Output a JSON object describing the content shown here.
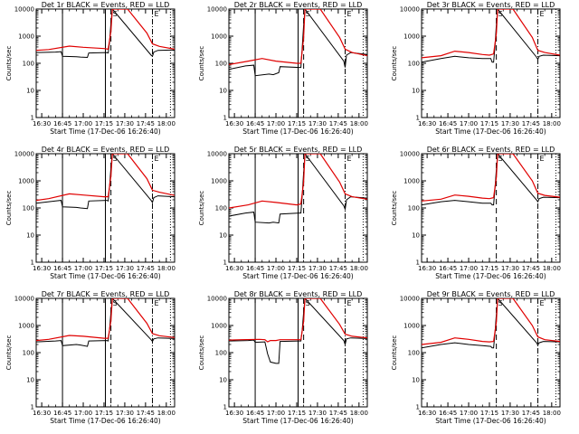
{
  "chart_data": {
    "type": "line",
    "xaxis_title": "Start Time (17-Dec-06 16:26:40)",
    "yaxis_title": "Counts/sec",
    "x_tick_labels": [
      "16:30",
      "16:45",
      "17:00",
      "17:15",
      "17:30",
      "17:45",
      "18:00"
    ],
    "x_range_minutes": [
      -4,
      96
    ],
    "y_scale": "log",
    "y_range": [
      1,
      10000
    ],
    "y_tick_labels": [
      "1",
      "10",
      "100",
      "1000",
      "10000"
    ],
    "panels": [
      {
        "title": "Det 1r BLACK = Events, RED = LLD",
        "markers": [
          "S",
          "E"
        ],
        "solid_lines": [
          15,
          46
        ],
        "dashed_line": 50,
        "dashdot_line": 80,
        "dotted_line": 93,
        "events": [
          [
            -4,
            250
          ],
          [
            10,
            260
          ],
          [
            14,
            270
          ],
          [
            15,
            180
          ],
          [
            25,
            175
          ],
          [
            28,
            170
          ],
          [
            33,
            165
          ],
          [
            34,
            240
          ],
          [
            47,
            250
          ],
          [
            48,
            240
          ],
          [
            49,
            600
          ],
          [
            50,
            3000
          ],
          [
            51,
            10000
          ],
          [
            79,
            200
          ],
          [
            80,
            180
          ],
          [
            81,
            260
          ],
          [
            84,
            300
          ],
          [
            96,
            310
          ]
        ],
        "lld": [
          [
            -4,
            300
          ],
          [
            5,
            320
          ],
          [
            20,
            430
          ],
          [
            30,
            390
          ],
          [
            45,
            350
          ],
          [
            48,
            330
          ],
          [
            50,
            1500
          ],
          [
            51,
            10000
          ],
          [
            62,
            10000
          ],
          [
            76,
            1300
          ],
          [
            80,
            520
          ],
          [
            85,
            420
          ],
          [
            96,
            330
          ]
        ]
      },
      {
        "title": "Det 2r BLACK = Events, RED = LLD",
        "markers": [
          "S",
          "E"
        ],
        "solid_lines": [
          15,
          46
        ],
        "dashed_line": 50,
        "dashdot_line": 80,
        "dotted_line": 93,
        "events": [
          [
            -4,
            60
          ],
          [
            8,
            80
          ],
          [
            14,
            85
          ],
          [
            15,
            35
          ],
          [
            25,
            40
          ],
          [
            28,
            38
          ],
          [
            32,
            45
          ],
          [
            33,
            75
          ],
          [
            47,
            70
          ],
          [
            48,
            70
          ],
          [
            49,
            400
          ],
          [
            50,
            2500
          ],
          [
            51,
            10000
          ],
          [
            79,
            120
          ],
          [
            80,
            70
          ],
          [
            81,
            200
          ],
          [
            84,
            250
          ],
          [
            96,
            210
          ]
        ],
        "lld": [
          [
            -4,
            90
          ],
          [
            10,
            120
          ],
          [
            20,
            150
          ],
          [
            30,
            120
          ],
          [
            45,
            100
          ],
          [
            48,
            100
          ],
          [
            50,
            900
          ],
          [
            51,
            10000
          ],
          [
            62,
            10000
          ],
          [
            76,
            900
          ],
          [
            80,
            330
          ],
          [
            85,
            250
          ],
          [
            96,
            190
          ]
        ]
      },
      {
        "title": "Det 3r BLACK = Events, RED = LLD",
        "markers": [
          "S",
          "E"
        ],
        "solid_lines": [],
        "dashed_line": 50,
        "dashdot_line": 80,
        "dotted_line": 93,
        "events": [
          [
            -4,
            110
          ],
          [
            10,
            150
          ],
          [
            20,
            180
          ],
          [
            30,
            160
          ],
          [
            40,
            150
          ],
          [
            46,
            150
          ],
          [
            47,
            110
          ],
          [
            48,
            110
          ],
          [
            49,
            400
          ],
          [
            50,
            2500
          ],
          [
            51,
            10000
          ],
          [
            79,
            170
          ],
          [
            80,
            140
          ],
          [
            81,
            180
          ],
          [
            84,
            200
          ],
          [
            96,
            190
          ]
        ],
        "lld": [
          [
            -4,
            160
          ],
          [
            10,
            190
          ],
          [
            20,
            280
          ],
          [
            30,
            250
          ],
          [
            40,
            210
          ],
          [
            45,
            200
          ],
          [
            48,
            220
          ],
          [
            50,
            1200
          ],
          [
            51,
            10000
          ],
          [
            62,
            10000
          ],
          [
            76,
            900
          ],
          [
            80,
            300
          ],
          [
            85,
            250
          ],
          [
            96,
            200
          ]
        ]
      },
      {
        "title": "Det 4r BLACK = Events, RED = LLD",
        "markers": [
          "S",
          "E"
        ],
        "solid_lines": [
          15,
          46
        ],
        "dashed_line": 50,
        "dashdot_line": 80,
        "dotted_line": 93,
        "events": [
          [
            -4,
            150
          ],
          [
            10,
            180
          ],
          [
            14,
            190
          ],
          [
            15,
            110
          ],
          [
            25,
            105
          ],
          [
            28,
            100
          ],
          [
            33,
            95
          ],
          [
            34,
            180
          ],
          [
            47,
            190
          ],
          [
            48,
            180
          ],
          [
            49,
            600
          ],
          [
            50,
            3000
          ],
          [
            51,
            10000
          ],
          [
            79,
            190
          ],
          [
            80,
            160
          ],
          [
            81,
            240
          ],
          [
            84,
            280
          ],
          [
            96,
            260
          ]
        ],
        "lld": [
          [
            -4,
            190
          ],
          [
            5,
            220
          ],
          [
            20,
            330
          ],
          [
            30,
            300
          ],
          [
            45,
            260
          ],
          [
            48,
            260
          ],
          [
            50,
            1500
          ],
          [
            51,
            10000
          ],
          [
            62,
            10000
          ],
          [
            76,
            1200
          ],
          [
            80,
            450
          ],
          [
            85,
            380
          ],
          [
            96,
            290
          ]
        ]
      },
      {
        "title": "Det 5r BLACK = Events, RED = LLD",
        "markers": [
          "S",
          "E"
        ],
        "solid_lines": [
          15,
          46
        ],
        "dashed_line": 50,
        "dashdot_line": 80,
        "dotted_line": 93,
        "events": [
          [
            -4,
            50
          ],
          [
            8,
            65
          ],
          [
            14,
            70
          ],
          [
            15,
            30
          ],
          [
            25,
            28
          ],
          [
            28,
            30
          ],
          [
            32,
            28
          ],
          [
            33,
            60
          ],
          [
            47,
            65
          ],
          [
            48,
            65
          ],
          [
            49,
            300
          ],
          [
            50,
            2000
          ],
          [
            51,
            10000
          ],
          [
            79,
            120
          ],
          [
            80,
            90
          ],
          [
            81,
            200
          ],
          [
            84,
            260
          ],
          [
            96,
            230
          ]
        ],
        "lld": [
          [
            -4,
            100
          ],
          [
            10,
            130
          ],
          [
            20,
            180
          ],
          [
            30,
            160
          ],
          [
            45,
            130
          ],
          [
            48,
            140
          ],
          [
            50,
            900
          ],
          [
            51,
            10000
          ],
          [
            62,
            10000
          ],
          [
            76,
            900
          ],
          [
            80,
            330
          ],
          [
            85,
            260
          ],
          [
            96,
            210
          ]
        ]
      },
      {
        "title": "Det 6r BLACK = Events, RED = LLD",
        "markers": [
          "S",
          "E"
        ],
        "solid_lines": [],
        "dashed_line": 50,
        "dashdot_line": 80,
        "dotted_line": 93,
        "events": [
          [
            -4,
            130
          ],
          [
            10,
            170
          ],
          [
            20,
            190
          ],
          [
            30,
            170
          ],
          [
            40,
            150
          ],
          [
            46,
            150
          ],
          [
            47,
            130
          ],
          [
            48,
            130
          ],
          [
            49,
            500
          ],
          [
            50,
            2500
          ],
          [
            51,
            10000
          ],
          [
            79,
            200
          ],
          [
            80,
            170
          ],
          [
            81,
            220
          ],
          [
            84,
            250
          ],
          [
            96,
            240
          ]
        ],
        "lld": [
          [
            -4,
            180
          ],
          [
            10,
            210
          ],
          [
            20,
            300
          ],
          [
            30,
            270
          ],
          [
            40,
            230
          ],
          [
            45,
            220
          ],
          [
            48,
            240
          ],
          [
            50,
            1300
          ],
          [
            51,
            10000
          ],
          [
            62,
            10000
          ],
          [
            76,
            1000
          ],
          [
            80,
            350
          ],
          [
            85,
            290
          ],
          [
            96,
            250
          ]
        ]
      },
      {
        "title": "Det 7r BLACK = Events, RED = LLD",
        "markers": [
          "S",
          "E"
        ],
        "solid_lines": [
          15,
          46
        ],
        "dashed_line": 50,
        "dashdot_line": 80,
        "dotted_line": 93,
        "events": [
          [
            -4,
            250
          ],
          [
            10,
            270
          ],
          [
            14,
            280
          ],
          [
            15,
            180
          ],
          [
            25,
            200
          ],
          [
            28,
            190
          ],
          [
            33,
            170
          ],
          [
            34,
            270
          ],
          [
            47,
            280
          ],
          [
            48,
            270
          ],
          [
            49,
            700
          ],
          [
            50,
            3000
          ],
          [
            51,
            10000
          ],
          [
            79,
            300
          ],
          [
            80,
            260
          ],
          [
            81,
            320
          ],
          [
            84,
            350
          ],
          [
            96,
            330
          ]
        ],
        "lld": [
          [
            -4,
            280
          ],
          [
            5,
            310
          ],
          [
            20,
            430
          ],
          [
            30,
            400
          ],
          [
            45,
            340
          ],
          [
            48,
            340
          ],
          [
            50,
            1500
          ],
          [
            51,
            10000
          ],
          [
            62,
            10000
          ],
          [
            76,
            1200
          ],
          [
            80,
            500
          ],
          [
            85,
            420
          ],
          [
            96,
            360
          ]
        ]
      },
      {
        "title": "Det 8r BLACK = Events, RED = LLD",
        "markers": [
          "S",
          "E"
        ],
        "solid_lines": [
          15,
          46
        ],
        "dashed_line": 50,
        "dashdot_line": 80,
        "dotted_line": 93,
        "events": [
          [
            -4,
            270
          ],
          [
            10,
            280
          ],
          [
            14,
            290
          ],
          [
            15,
            240
          ],
          [
            22,
            250
          ],
          [
            24,
            90
          ],
          [
            26,
            45
          ],
          [
            30,
            40
          ],
          [
            32,
            40
          ],
          [
            33,
            260
          ],
          [
            47,
            270
          ],
          [
            48,
            270
          ],
          [
            49,
            700
          ],
          [
            50,
            3000
          ],
          [
            51,
            10000
          ],
          [
            79,
            280
          ],
          [
            80,
            200
          ],
          [
            81,
            320
          ],
          [
            84,
            350
          ],
          [
            96,
            330
          ]
        ],
        "lld": [
          [
            -4,
            290
          ],
          [
            5,
            300
          ],
          [
            18,
            310
          ],
          [
            22,
            300
          ],
          [
            24,
            250
          ],
          [
            26,
            280
          ],
          [
            30,
            280
          ],
          [
            33,
            300
          ],
          [
            45,
            300
          ],
          [
            48,
            300
          ],
          [
            50,
            1400
          ],
          [
            51,
            10000
          ],
          [
            62,
            10000
          ],
          [
            76,
            1100
          ],
          [
            80,
            480
          ],
          [
            85,
            400
          ],
          [
            96,
            350
          ]
        ]
      },
      {
        "title": "Det 9r BLACK = Events, RED = LLD",
        "markers": [
          "S",
          "E"
        ],
        "solid_lines": [],
        "dashed_line": 50,
        "dashdot_line": 80,
        "dotted_line": 93,
        "events": [
          [
            -4,
            150
          ],
          [
            10,
            200
          ],
          [
            20,
            230
          ],
          [
            30,
            200
          ],
          [
            40,
            180
          ],
          [
            46,
            170
          ],
          [
            47,
            150
          ],
          [
            48,
            150
          ],
          [
            49,
            500
          ],
          [
            50,
            2500
          ],
          [
            51,
            10000
          ],
          [
            79,
            230
          ],
          [
            80,
            190
          ],
          [
            81,
            230
          ],
          [
            84,
            260
          ],
          [
            96,
            250
          ]
        ],
        "lld": [
          [
            -4,
            200
          ],
          [
            10,
            240
          ],
          [
            20,
            350
          ],
          [
            30,
            310
          ],
          [
            40,
            260
          ],
          [
            45,
            250
          ],
          [
            48,
            260
          ],
          [
            50,
            1300
          ],
          [
            51,
            10000
          ],
          [
            62,
            10000
          ],
          [
            76,
            1000
          ],
          [
            80,
            380
          ],
          [
            85,
            300
          ],
          [
            96,
            260
          ]
        ]
      }
    ]
  }
}
